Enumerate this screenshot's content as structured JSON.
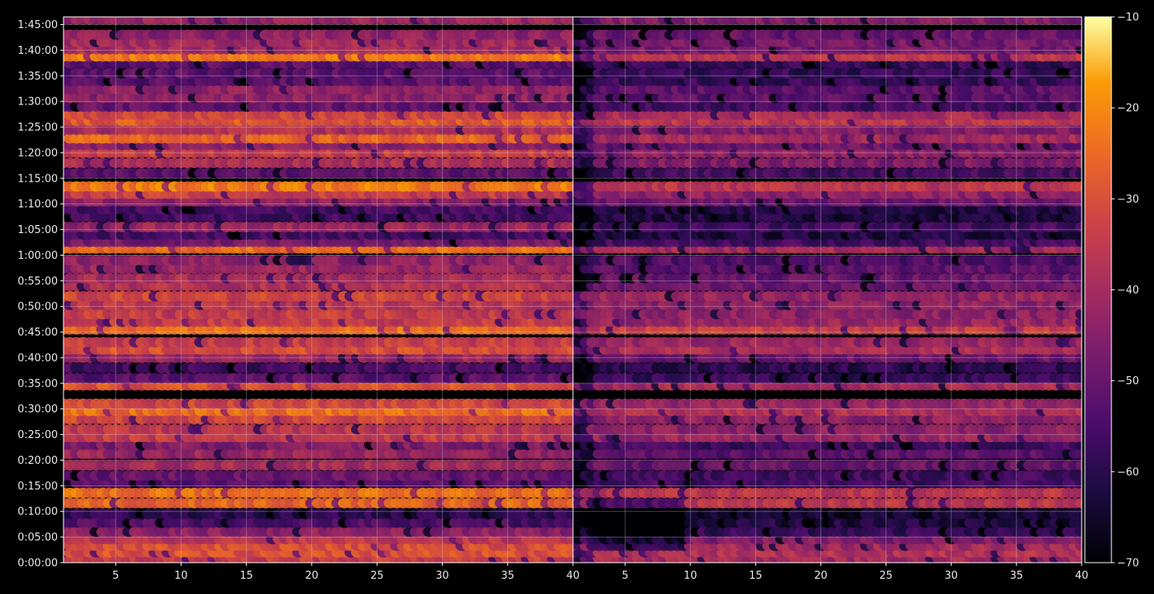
{
  "chart_data": {
    "type": "heatmap",
    "colormap": "inferno",
    "grid": true,
    "background": "#000000",
    "text_color": "#e8e8e8",
    "y_tick_labels": [
      "0:00:00",
      "0:05:00",
      "0:10:00",
      "0:15:00",
      "0:20:00",
      "0:25:00",
      "0:30:00",
      "0:35:00",
      "0:40:00",
      "0:45:00",
      "0:50:00",
      "0:55:00",
      "1:00:00",
      "1:05:00",
      "1:10:00",
      "1:15:00",
      "1:20:00",
      "1:25:00",
      "1:30:00",
      "1:35:00",
      "1:40:00",
      "1:45:00"
    ],
    "ylim_minutes": [
      0,
      106.5
    ],
    "colorbar": {
      "range": [
        -70,
        -10
      ],
      "tick_labels": [
        "−10",
        "−20",
        "−30",
        "−40",
        "−50",
        "−60",
        "−70"
      ],
      "tick_values": [
        -10,
        -20,
        -30,
        -40,
        -50,
        -60,
        -70
      ]
    },
    "panels": [
      {
        "xlim": [
          1,
          40
        ],
        "x_ticks": [
          5,
          10,
          15,
          20,
          25,
          30,
          35,
          40
        ],
        "x_tick_labels": [
          "5",
          "10",
          "15",
          "20",
          "25",
          "30",
          "35",
          "40"
        ],
        "value_bands": [
          {
            "t": 0.9,
            "v": -34
          },
          {
            "t": 2.0,
            "v": -30
          },
          {
            "t": 3.3,
            "v": -30
          },
          {
            "t": 4.6,
            "v": -36
          },
          {
            "t": 6.0,
            "v": -44
          },
          {
            "t": 7.8,
            "v": -54
          },
          {
            "t": 9.5,
            "v": -60
          },
          {
            "t": 11.6,
            "v": -26
          },
          {
            "t": 13.6,
            "v": -24
          },
          {
            "t": 15.6,
            "v": -52
          },
          {
            "t": 17.0,
            "v": -50
          },
          {
            "t": 19.0,
            "v": -40
          },
          {
            "t": 21.2,
            "v": -42
          },
          {
            "t": 23.0,
            "v": -46
          },
          {
            "t": 24.5,
            "v": -34
          },
          {
            "t": 26.0,
            "v": -36
          },
          {
            "t": 28.0,
            "v": -32
          },
          {
            "t": 29.6,
            "v": -24
          },
          {
            "t": 31.0,
            "v": -32
          },
          {
            "t": 34.6,
            "v": -29
          },
          {
            "t": 36.0,
            "v": -52
          },
          {
            "t": 38.0,
            "v": -56
          },
          {
            "t": 40.0,
            "v": -42
          },
          {
            "t": 41.6,
            "v": -30
          },
          {
            "t": 43.0,
            "v": -34
          },
          {
            "t": 45.5,
            "v": -24
          },
          {
            "t": 47.0,
            "v": -34
          },
          {
            "t": 48.5,
            "v": -34
          },
          {
            "t": 50.3,
            "v": -36
          },
          {
            "t": 52.0,
            "v": -32
          },
          {
            "t": 54.0,
            "v": -38
          },
          {
            "t": 55.5,
            "v": -40
          },
          {
            "t": 57.4,
            "v": -42
          },
          {
            "t": 59.0,
            "v": -44
          },
          {
            "t": 61.3,
            "v": -24
          },
          {
            "t": 62.6,
            "v": -48
          },
          {
            "t": 64.0,
            "v": -56
          },
          {
            "t": 65.5,
            "v": -42
          },
          {
            "t": 67.5,
            "v": -56
          },
          {
            "t": 69.0,
            "v": -56
          },
          {
            "t": 70.5,
            "v": -44
          },
          {
            "t": 72.0,
            "v": -34
          },
          {
            "t": 73.4,
            "v": -22
          },
          {
            "t": 76.0,
            "v": -52
          },
          {
            "t": 78.0,
            "v": -38
          },
          {
            "t": 80.0,
            "v": -34
          },
          {
            "t": 81.5,
            "v": -44
          },
          {
            "t": 82.8,
            "v": -26
          },
          {
            "t": 84.5,
            "v": -38
          },
          {
            "t": 86.2,
            "v": -28
          },
          {
            "t": 87.4,
            "v": -32
          },
          {
            "t": 89.0,
            "v": -50
          },
          {
            "t": 90.7,
            "v": -44
          },
          {
            "t": 92.4,
            "v": -44
          },
          {
            "t": 94.0,
            "v": -52
          },
          {
            "t": 95.5,
            "v": -52
          },
          {
            "t": 97.4,
            "v": -52
          },
          {
            "t": 98.8,
            "v": -22
          },
          {
            "t": 100.2,
            "v": -40
          },
          {
            "t": 101.6,
            "v": -40
          },
          {
            "t": 103.0,
            "v": -44
          },
          {
            "t": 106.0,
            "v": -42
          }
        ]
      },
      {
        "xlim": [
          1,
          40
        ],
        "x_ticks": [
          5,
          10,
          15,
          20,
          25,
          30,
          35,
          40
        ],
        "x_tick_labels": [
          "5",
          "10",
          "15",
          "20",
          "25",
          "30",
          "35",
          "40"
        ],
        "value_bands": [
          {
            "t": 0.9,
            "v": -40
          },
          {
            "t": 2.0,
            "v": -38
          },
          {
            "t": 3.3,
            "v": -40
          },
          {
            "t": 4.6,
            "v": -46
          },
          {
            "t": 6.0,
            "v": -58
          },
          {
            "t": 7.8,
            "v": -62
          },
          {
            "t": 9.5,
            "v": -64
          },
          {
            "t": 11.6,
            "v": -36
          },
          {
            "t": 13.6,
            "v": -36
          },
          {
            "t": 15.6,
            "v": -56
          },
          {
            "t": 17.0,
            "v": -56
          },
          {
            "t": 19.0,
            "v": -50
          },
          {
            "t": 21.2,
            "v": -52
          },
          {
            "t": 23.0,
            "v": -56
          },
          {
            "t": 24.5,
            "v": -42
          },
          {
            "t": 26.0,
            "v": -44
          },
          {
            "t": 28.0,
            "v": -44
          },
          {
            "t": 29.6,
            "v": -38
          },
          {
            "t": 31.0,
            "v": -42
          },
          {
            "t": 34.6,
            "v": -40
          },
          {
            "t": 36.0,
            "v": -58
          },
          {
            "t": 38.0,
            "v": -60
          },
          {
            "t": 40.0,
            "v": -50
          },
          {
            "t": 41.6,
            "v": -38
          },
          {
            "t": 43.0,
            "v": -42
          },
          {
            "t": 45.5,
            "v": -34
          },
          {
            "t": 47.0,
            "v": -42
          },
          {
            "t": 48.5,
            "v": -44
          },
          {
            "t": 50.3,
            "v": -44
          },
          {
            "t": 52.0,
            "v": -42
          },
          {
            "t": 54.0,
            "v": -50
          },
          {
            "t": 55.5,
            "v": -50
          },
          {
            "t": 57.4,
            "v": -52
          },
          {
            "t": 59.0,
            "v": -54
          },
          {
            "t": 61.3,
            "v": -40
          },
          {
            "t": 62.6,
            "v": -56
          },
          {
            "t": 64.0,
            "v": -62
          },
          {
            "t": 65.5,
            "v": -56
          },
          {
            "t": 67.5,
            "v": -62
          },
          {
            "t": 69.0,
            "v": -62
          },
          {
            "t": 70.5,
            "v": -50
          },
          {
            "t": 72.0,
            "v": -44
          },
          {
            "t": 73.4,
            "v": -36
          },
          {
            "t": 76.0,
            "v": -56
          },
          {
            "t": 78.0,
            "v": -46
          },
          {
            "t": 80.0,
            "v": -44
          },
          {
            "t": 81.5,
            "v": -50
          },
          {
            "t": 82.8,
            "v": -40
          },
          {
            "t": 84.5,
            "v": -46
          },
          {
            "t": 86.2,
            "v": -36
          },
          {
            "t": 87.4,
            "v": -40
          },
          {
            "t": 89.0,
            "v": -56
          },
          {
            "t": 90.7,
            "v": -52
          },
          {
            "t": 92.4,
            "v": -52
          },
          {
            "t": 94.0,
            "v": -58
          },
          {
            "t": 95.5,
            "v": -58
          },
          {
            "t": 97.4,
            "v": -58
          },
          {
            "t": 98.8,
            "v": -36
          },
          {
            "t": 100.2,
            "v": -48
          },
          {
            "t": 101.6,
            "v": -48
          },
          {
            "t": 103.0,
            "v": -50
          },
          {
            "t": 106.0,
            "v": -46
          }
        ]
      }
    ]
  }
}
